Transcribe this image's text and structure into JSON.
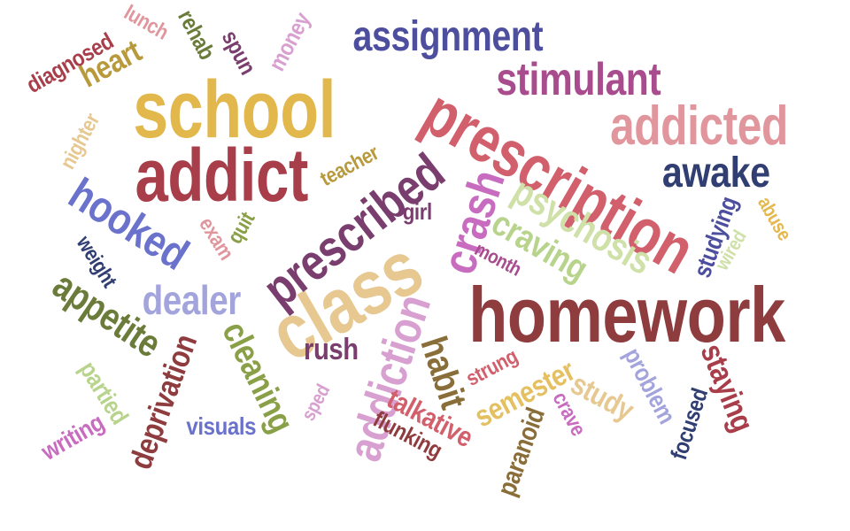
{
  "palette": {
    "crimson": "#a83e4a",
    "gold": "#e4b84e",
    "rose": "#d2606c",
    "pink": "#e0969c",
    "navy": "#303e72",
    "indigo": "#4d4f9e",
    "blue": "#6a72cc",
    "lavender": "#a3a4dc",
    "plum": "#a84c8e",
    "magenta": "#c86cc0",
    "olive": "#6b7c3a",
    "lime": "#b8d48c",
    "tan": "#e6c890",
    "brown": "#8a6e3a",
    "maroon": "#8e3c3e"
  },
  "words": [
    {
      "text": "school",
      "color": "#e2b84c"
    },
    {
      "text": "addict",
      "color": "#a83e4a"
    },
    {
      "text": "homework",
      "color": "#8e3c3e"
    },
    {
      "text": "class",
      "color": "#e6c890"
    },
    {
      "text": "prescription",
      "color": "#d2606c"
    },
    {
      "text": "prescribed",
      "color": "#7a3e6e"
    },
    {
      "text": "addicted",
      "color": "#e0969c"
    },
    {
      "text": "stimulant",
      "color": "#a84c8e"
    },
    {
      "text": "assignment",
      "color": "#4d4f9e"
    },
    {
      "text": "awake",
      "color": "#303e72"
    },
    {
      "text": "addiction",
      "color": "#d8a0d0"
    },
    {
      "text": "crash",
      "color": "#c86cc0"
    },
    {
      "text": "hooked",
      "color": "#6a72cc"
    },
    {
      "text": "psychosis",
      "color": "#cfe0a8"
    },
    {
      "text": "craving",
      "color": "#b8d48c"
    },
    {
      "text": "appetite",
      "color": "#6b7c3a"
    },
    {
      "text": "dealer",
      "color": "#a3a4dc"
    },
    {
      "text": "cleaning",
      "color": "#8aa048"
    },
    {
      "text": "deprivation",
      "color": "#8e3c3e"
    },
    {
      "text": "habit",
      "color": "#8a6e3a"
    },
    {
      "text": "heart",
      "color": "#b89a3c"
    },
    {
      "text": "semester",
      "color": "#e4c060"
    },
    {
      "text": "study",
      "color": "#e6c890"
    },
    {
      "text": "staying",
      "color": "#a83e4a"
    },
    {
      "text": "talkative",
      "color": "#d2606c"
    },
    {
      "text": "paranoid",
      "color": "#8a6e3a"
    },
    {
      "text": "studying",
      "color": "#4d4f9e"
    },
    {
      "text": "rush",
      "color": "#7a3e6e"
    },
    {
      "text": "visuals",
      "color": "#6a72cc"
    },
    {
      "text": "problem",
      "color": "#a3a4dc"
    },
    {
      "text": "focused",
      "color": "#303e72"
    },
    {
      "text": "flunking",
      "color": "#8e3c3e"
    },
    {
      "text": "strung",
      "color": "#d2606c"
    },
    {
      "text": "crave",
      "color": "#c86cc0"
    },
    {
      "text": "writing",
      "color": "#c86cc0"
    },
    {
      "text": "partied",
      "color": "#b8d48c"
    },
    {
      "text": "weight",
      "color": "#303e72"
    },
    {
      "text": "exam",
      "color": "#e0969c"
    },
    {
      "text": "quit",
      "color": "#8aa048"
    },
    {
      "text": "girl",
      "color": "#7a3e6e"
    },
    {
      "text": "month",
      "color": "#a84c8e"
    },
    {
      "text": "teacher",
      "color": "#b89a3c"
    },
    {
      "text": "nighter",
      "color": "#e6c890"
    },
    {
      "text": "diagnosed",
      "color": "#a83e4a"
    },
    {
      "text": "lunch",
      "color": "#e0969c"
    },
    {
      "text": "rehab",
      "color": "#6b7c3a"
    },
    {
      "text": "spun",
      "color": "#7a3e6e"
    },
    {
      "text": "money",
      "color": "#d8a0d0"
    },
    {
      "text": "abuse",
      "color": "#e4b84e"
    },
    {
      "text": "wired",
      "color": "#cfe0a8"
    },
    {
      "text": "sped",
      "color": "#d8a0d0"
    }
  ]
}
